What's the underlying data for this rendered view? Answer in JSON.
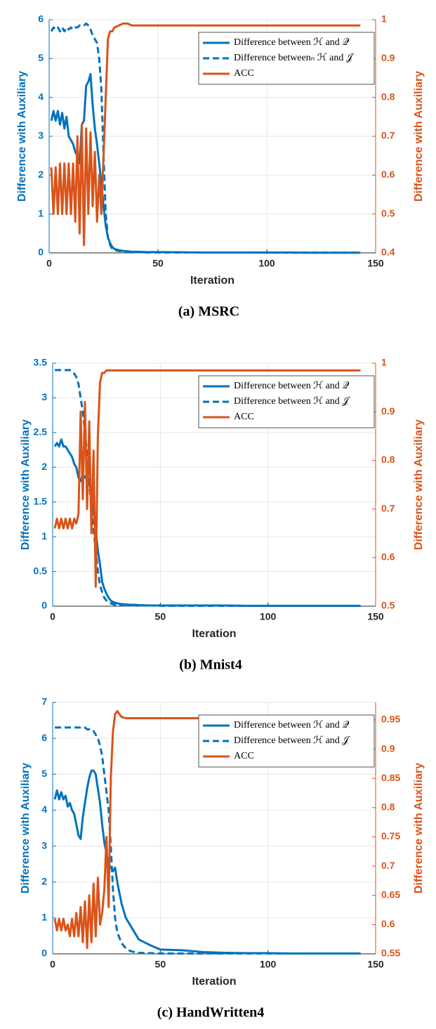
{
  "chart_data": [
    {
      "type": "line",
      "title": "(a) MSRC",
      "xlabel": "Iteration",
      "ylabel": "Difference with Auxiliary",
      "y2label": "Difference with Auxiliary",
      "xlim": [
        0,
        150
      ],
      "xticks": [
        0,
        50,
        100,
        150
      ],
      "ylim": [
        0,
        6
      ],
      "yticks": [
        0,
        1,
        2,
        3,
        4,
        5,
        6
      ],
      "y2lim": [
        0.4,
        1
      ],
      "y2ticks": [
        0.4,
        0.5,
        0.6,
        0.7,
        0.8,
        0.9,
        1
      ],
      "grid": true,
      "legend": "upper right",
      "x": [
        1,
        2,
        3,
        4,
        5,
        6,
        7,
        8,
        9,
        10,
        11,
        12,
        13,
        14,
        15,
        16,
        17,
        18,
        19,
        20,
        21,
        22,
        23,
        24,
        25,
        26,
        27,
        28,
        29,
        30,
        32,
        34,
        36,
        38,
        40,
        45,
        50,
        60,
        70,
        80,
        90,
        100,
        110,
        120,
        130,
        143
      ],
      "series": [
        {
          "name": "Difference between ℋ and 𝒬",
          "color": "#0072BD",
          "linestyle": "solid",
          "axis": "y",
          "values": [
            3.4,
            3.65,
            3.4,
            3.65,
            3.3,
            3.6,
            3.2,
            3.5,
            3.0,
            2.9,
            2.8,
            2.6,
            2.5,
            2.3,
            3.3,
            3.4,
            4.3,
            4.4,
            4.6,
            3.8,
            3.2,
            2.8,
            2.3,
            1.8,
            1.2,
            0.7,
            0.4,
            0.25,
            0.15,
            0.1,
            0.07,
            0.05,
            0.04,
            0.03,
            0.03,
            0.02,
            0.02,
            0.015,
            0.01,
            0.01,
            0.01,
            0.01,
            0.01,
            0.005,
            0.005,
            0.005
          ]
        },
        {
          "name": "Difference betweenₙ ℋ and 𝒥",
          "color": "#0072BD",
          "linestyle": "dashed",
          "axis": "y",
          "values": [
            5.7,
            5.8,
            5.75,
            5.8,
            5.7,
            5.8,
            5.7,
            5.8,
            5.75,
            5.8,
            5.75,
            5.8,
            5.8,
            5.85,
            5.85,
            5.85,
            5.9,
            5.85,
            5.75,
            5.6,
            5.5,
            5.4,
            5.0,
            4.2,
            2.5,
            1.0,
            0.4,
            0.2,
            0.1,
            0.07,
            0.05,
            0.04,
            0.03,
            0.02,
            0.02,
            0.01,
            0.01,
            0.01,
            0.01,
            0.01,
            0.01,
            0.005,
            0.005,
            0.005,
            0.005,
            0.005
          ]
        },
        {
          "name": "ACC",
          "color": "#D95319",
          "linestyle": "solid",
          "axis": "y2",
          "values": [
            0.62,
            0.5,
            0.62,
            0.5,
            0.63,
            0.5,
            0.63,
            0.5,
            0.63,
            0.5,
            0.63,
            0.48,
            0.7,
            0.45,
            0.73,
            0.42,
            0.72,
            0.5,
            0.71,
            0.52,
            0.66,
            0.48,
            0.6,
            0.5,
            0.65,
            0.8,
            0.95,
            0.97,
            0.97,
            0.98,
            0.985,
            0.99,
            0.99,
            0.985,
            0.985,
            0.985,
            0.985,
            0.985,
            0.985,
            0.985,
            0.985,
            0.985,
            0.985,
            0.985,
            0.985,
            0.985
          ]
        }
      ]
    },
    {
      "type": "line",
      "title": "(b) Mnist4",
      "xlabel": "Iteration",
      "ylabel": "Difference with Auxiliary",
      "y2label": "Difference with Auxiliary",
      "xlim": [
        0,
        150
      ],
      "xticks": [
        0,
        50,
        100,
        150
      ],
      "ylim": [
        0,
        3.5
      ],
      "yticks": [
        0,
        0.5,
        1,
        1.5,
        2,
        2.5,
        3,
        3.5
      ],
      "y2lim": [
        0.5,
        1
      ],
      "y2ticks": [
        0.5,
        0.6,
        0.7,
        0.8,
        0.9,
        1
      ],
      "grid": true,
      "legend": "upper right",
      "x": [
        1,
        2,
        3,
        4,
        5,
        6,
        7,
        8,
        9,
        10,
        11,
        12,
        13,
        14,
        15,
        16,
        17,
        18,
        19,
        20,
        21,
        22,
        23,
        24,
        25,
        26,
        27,
        28,
        29,
        30,
        32,
        34,
        36,
        38,
        40,
        45,
        50,
        60,
        70,
        80,
        90,
        100,
        110,
        120,
        130,
        143
      ],
      "series": [
        {
          "name": "Difference between ℋ and 𝒬",
          "color": "#0072BD",
          "linestyle": "solid",
          "axis": "y",
          "values": [
            2.3,
            2.35,
            2.3,
            2.4,
            2.3,
            2.3,
            2.25,
            2.2,
            2.15,
            2.05,
            2.0,
            1.85,
            1.8,
            1.9,
            1.85,
            1.9,
            1.8,
            1.6,
            1.4,
            1.1,
            0.8,
            0.6,
            0.35,
            0.25,
            0.18,
            0.12,
            0.08,
            0.06,
            0.05,
            0.04,
            0.03,
            0.025,
            0.02,
            0.02,
            0.015,
            0.01,
            0.01,
            0.01,
            0.01,
            0.01,
            0.005,
            0.005,
            0.005,
            0.005,
            0.005,
            0.005
          ]
        },
        {
          "name": "Difference between ℋ and 𝒥",
          "color": "#0072BD",
          "linestyle": "dashed",
          "axis": "y",
          "values": [
            3.4,
            3.4,
            3.4,
            3.4,
            3.4,
            3.4,
            3.4,
            3.4,
            3.38,
            3.35,
            3.3,
            3.2,
            3.0,
            2.8,
            2.5,
            2.2,
            1.8,
            1.4,
            1.1,
            0.8,
            0.5,
            0.3,
            0.2,
            0.12,
            0.08,
            0.05,
            0.04,
            0.03,
            0.02,
            0.02,
            0.015,
            0.01,
            0.01,
            0.01,
            0.01,
            0.01,
            0.005,
            0.005,
            0.005,
            0.005,
            0.005,
            0.005,
            0.005,
            0.005,
            0.005,
            0.005
          ]
        },
        {
          "name": "ACC",
          "color": "#D95319",
          "linestyle": "solid",
          "axis": "y2",
          "values": [
            0.66,
            0.68,
            0.66,
            0.68,
            0.66,
            0.68,
            0.66,
            0.68,
            0.66,
            0.68,
            0.67,
            0.69,
            0.9,
            0.72,
            0.92,
            0.7,
            0.88,
            0.65,
            0.82,
            0.54,
            0.85,
            0.96,
            0.98,
            0.98,
            0.985,
            0.985,
            0.985,
            0.985,
            0.985,
            0.985,
            0.985,
            0.985,
            0.985,
            0.985,
            0.985,
            0.985,
            0.985,
            0.985,
            0.985,
            0.985,
            0.985,
            0.985,
            0.985,
            0.985,
            0.985,
            0.985
          ]
        }
      ]
    },
    {
      "type": "line",
      "title": "(c) HandWritten4",
      "xlabel": "Iteration",
      "ylabel": "Difference with Auxiliary",
      "y2label": "Difference with Auxiliary",
      "xlim": [
        0,
        150
      ],
      "xticks": [
        0,
        50,
        100,
        150
      ],
      "ylim": [
        0,
        7
      ],
      "yticks": [
        0,
        1,
        2,
        3,
        4,
        5,
        6,
        7
      ],
      "y2lim": [
        0.55,
        0.98
      ],
      "y2ticks": [
        0.55,
        0.6,
        0.65,
        0.7,
        0.75,
        0.8,
        0.85,
        0.9,
        0.95
      ],
      "grid": true,
      "legend": "upper right",
      "x": [
        1,
        2,
        3,
        4,
        5,
        6,
        7,
        8,
        9,
        10,
        11,
        12,
        13,
        14,
        15,
        16,
        17,
        18,
        19,
        20,
        21,
        22,
        23,
        24,
        25,
        26,
        27,
        28,
        29,
        30,
        32,
        34,
        36,
        38,
        40,
        45,
        50,
        60,
        70,
        80,
        90,
        100,
        110,
        120,
        130,
        143
      ],
      "series": [
        {
          "name": "Difference between ℋ and 𝒬",
          "color": "#0072BD",
          "linestyle": "solid",
          "axis": "y",
          "values": [
            4.3,
            4.55,
            4.3,
            4.5,
            4.3,
            4.4,
            4.1,
            4.2,
            4.0,
            3.9,
            3.6,
            3.3,
            3.2,
            3.8,
            4.2,
            4.6,
            4.9,
            5.1,
            5.1,
            5.0,
            4.6,
            4.2,
            3.6,
            3.1,
            2.8,
            2.5,
            2.4,
            2.3,
            2.4,
            2.0,
            1.4,
            1.0,
            0.8,
            0.6,
            0.4,
            0.25,
            0.12,
            0.1,
            0.05,
            0.03,
            0.02,
            0.02,
            0.01,
            0.01,
            0.01,
            0.01
          ]
        },
        {
          "name": "Difference between ℋ and 𝒥",
          "color": "#0072BD",
          "linestyle": "dashed",
          "axis": "y",
          "values": [
            6.3,
            6.3,
            6.3,
            6.3,
            6.3,
            6.3,
            6.3,
            6.3,
            6.3,
            6.3,
            6.3,
            6.3,
            6.3,
            6.3,
            6.3,
            6.25,
            6.25,
            6.2,
            6.2,
            6.1,
            6.0,
            5.8,
            5.5,
            5.0,
            4.5,
            4.0,
            3.0,
            1.8,
            1.0,
            0.6,
            0.3,
            0.15,
            0.08,
            0.05,
            0.03,
            0.02,
            0.01,
            0.01,
            0.01,
            0.01,
            0.01,
            0.01,
            0.01,
            0.01,
            0.01,
            0.01
          ]
        },
        {
          "name": "ACC",
          "color": "#D95319",
          "linestyle": "solid",
          "axis": "y2",
          "values": [
            0.61,
            0.59,
            0.61,
            0.59,
            0.61,
            0.59,
            0.6,
            0.58,
            0.61,
            0.58,
            0.62,
            0.58,
            0.63,
            0.57,
            0.64,
            0.56,
            0.65,
            0.57,
            0.67,
            0.58,
            0.68,
            0.6,
            0.62,
            0.66,
            0.75,
            0.63,
            0.85,
            0.93,
            0.96,
            0.965,
            0.955,
            0.953,
            0.953,
            0.953,
            0.953,
            0.953,
            0.953,
            0.953,
            0.953,
            0.953,
            0.953,
            0.953,
            0.953,
            0.953,
            0.953,
            0.953
          ]
        }
      ]
    }
  ]
}
